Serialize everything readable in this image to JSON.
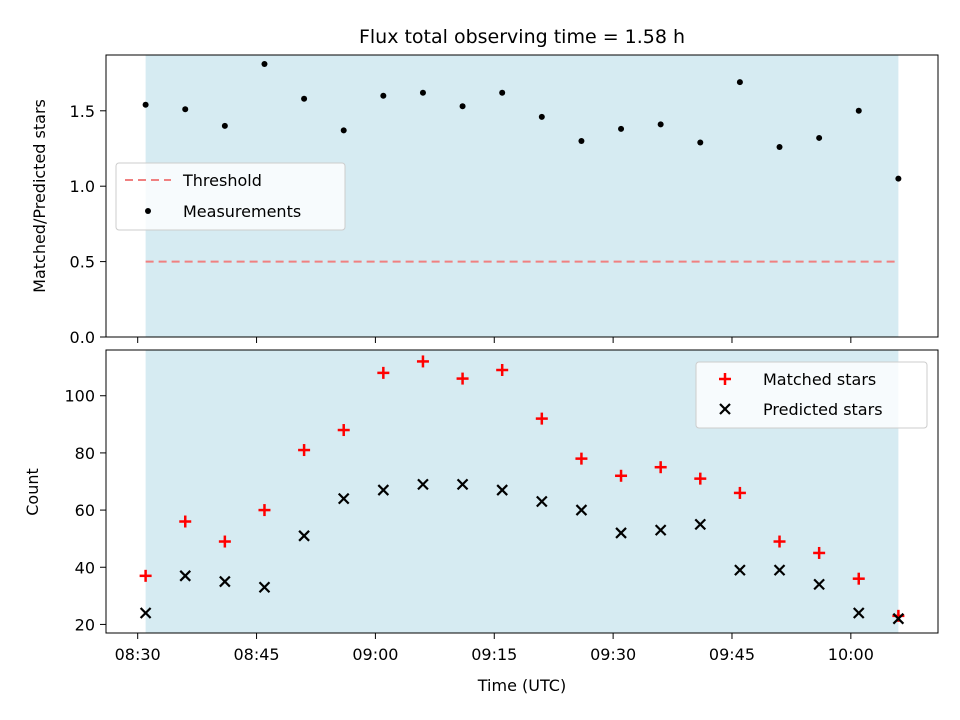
{
  "chart_data": {
    "title": "Flux total observing time = 1.58 h",
    "xlabel": "Time (UTC)",
    "x_tick_labels": [
      "08:30",
      "08:45",
      "09:00",
      "09:15",
      "09:30",
      "09:45",
      "10:00"
    ],
    "times": [
      "08:31",
      "08:36",
      "08:41",
      "08:46",
      "08:51",
      "08:56",
      "09:01",
      "09:06",
      "09:11",
      "09:16",
      "09:21",
      "09:26",
      "09:31",
      "09:36",
      "09:41",
      "09:46",
      "09:51",
      "09:56",
      "10:01",
      "10:06"
    ],
    "observing_window": {
      "start": "08:31",
      "end": "10:06",
      "color": "#add8e6"
    },
    "xlim": [
      "08:26",
      "10:11"
    ],
    "panels": [
      {
        "type": "scatter",
        "ylabel": "Matched/Predicted stars",
        "ylim": [
          0,
          1.87
        ],
        "yticks": [
          "0.0",
          "0.5",
          "1.0",
          "1.5"
        ],
        "threshold": {
          "name": "Threshold",
          "value": 0.5,
          "color": "#f08080",
          "style": "dashed"
        },
        "series": [
          {
            "name": "Measurements",
            "color": "#000000",
            "marker": "dot",
            "values": [
              1.54,
              1.51,
              1.4,
              1.81,
              1.58,
              1.37,
              1.6,
              1.62,
              1.53,
              1.62,
              1.46,
              1.3,
              1.38,
              1.41,
              1.29,
              1.69,
              1.26,
              1.32,
              1.5,
              1.05
            ]
          }
        ],
        "legend": {
          "placement": "center-left",
          "entries": [
            "Threshold",
            "Measurements"
          ]
        }
      },
      {
        "type": "scatter",
        "ylabel": "Count",
        "ylim": [
          17,
          116
        ],
        "yticks": [
          "20",
          "40",
          "60",
          "80",
          "100"
        ],
        "series": [
          {
            "name": "Matched stars",
            "color": "#ff0000",
            "marker": "plus",
            "values": [
              37,
              56,
              49,
              60,
              81,
              88,
              108,
              112,
              106,
              109,
              92,
              78,
              72,
              75,
              71,
              66,
              49,
              45,
              36,
              23
            ]
          },
          {
            "name": "Predicted stars",
            "color": "#000000",
            "marker": "x",
            "values": [
              24,
              37,
              35,
              33,
              51,
              64,
              67,
              69,
              69,
              67,
              63,
              60,
              52,
              53,
              55,
              39,
              39,
              34,
              24,
              22
            ]
          }
        ],
        "legend": {
          "placement": "top-right",
          "entries": [
            "Matched stars",
            "Predicted stars"
          ]
        }
      }
    ]
  }
}
